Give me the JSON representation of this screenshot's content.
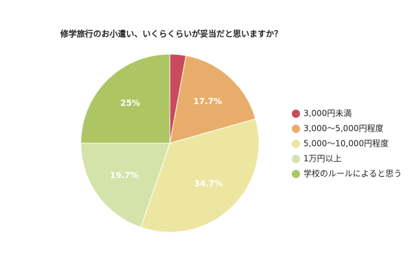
{
  "chart_data": {
    "type": "pie",
    "title": "修学旅行のお小遣い、いくらくらいが妥当だと思いますか？",
    "categories": [
      "3,000円未満",
      "3,000〜5,000円程度",
      "5,000〜10,000円程度",
      "1万円以上",
      "学校のルールによると思う"
    ],
    "values": [
      2.9,
      17.7,
      34.7,
      19.7,
      25
    ],
    "value_labels": [
      null,
      "17.7%",
      "34.7%",
      "19.7%",
      "25%"
    ],
    "colors": [
      "#c94a5a",
      "#e8ad6a",
      "#ede6a1",
      "#d4e3a9",
      "#aec564"
    ],
    "legend": "right"
  }
}
